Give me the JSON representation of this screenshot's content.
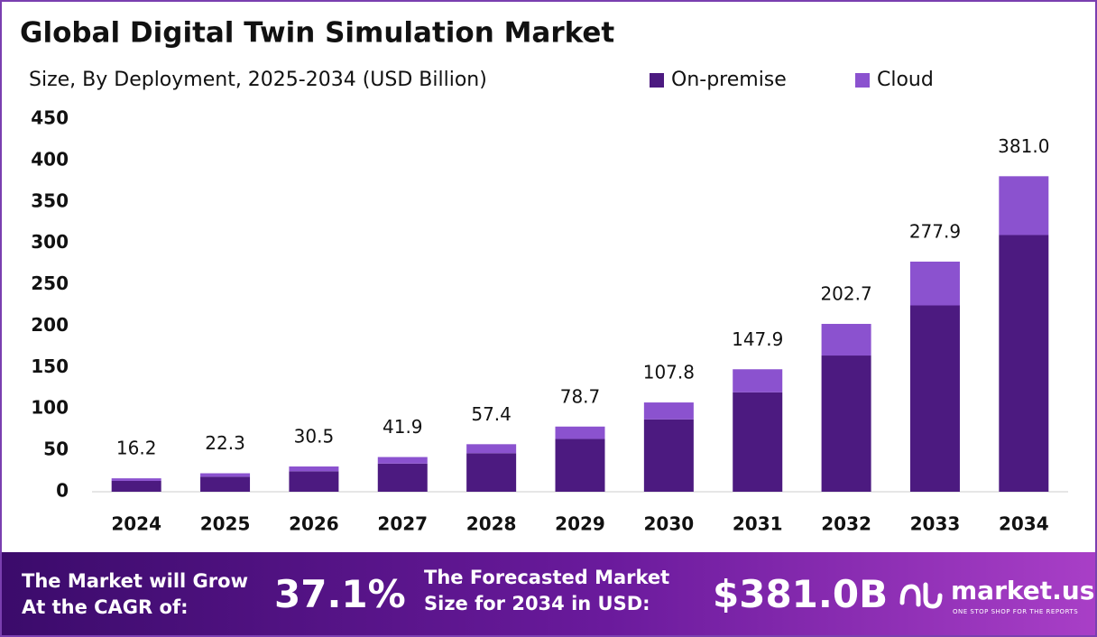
{
  "chart_data": {
    "type": "stacked-bar",
    "title": "Global Digital Twin Simulation Market",
    "subtitle": "Size, By Deployment, 2025-2034 (USD Billion)",
    "categories": [
      "2024",
      "2025",
      "2026",
      "2027",
      "2028",
      "2029",
      "2030",
      "2031",
      "2032",
      "2033",
      "2034"
    ],
    "series": [
      {
        "name": "On-premise",
        "color": "#4c1a80",
        "values": [
          13.1,
          18.1,
          24.7,
          34.0,
          46.5,
          63.8,
          87.4,
          120.0,
          164.5,
          225.0,
          310.0
        ]
      },
      {
        "name": "Cloud",
        "color": "#8b52cf",
        "values": [
          3.1,
          4.2,
          5.8,
          7.9,
          10.9,
          14.9,
          20.4,
          27.9,
          38.2,
          52.9,
          71.0
        ]
      }
    ],
    "totals": {
      "values": [
        16.2,
        22.3,
        30.5,
        41.9,
        57.4,
        78.7,
        107.8,
        147.9,
        202.7,
        277.9,
        381.0
      ],
      "value_labels": [
        "16.2",
        "22.3",
        "30.5",
        "41.9",
        "57.4",
        "78.7",
        "107.8",
        "147.9",
        "202.7",
        "277.9",
        "381.0"
      ]
    },
    "ylim": [
      0,
      450
    ],
    "yticks": [
      0,
      50,
      100,
      150,
      200,
      250,
      300,
      350,
      400,
      450
    ],
    "grid": false,
    "legend": "top-right"
  },
  "footer": {
    "cagr_label": [
      "The Market will Grow",
      "At the CAGR of:"
    ],
    "cagr": "37.1%",
    "forecast_label": [
      "The Forecasted Market",
      "Size for 2034 in USD:"
    ],
    "forecast": "$381.0B",
    "brand": "market.us",
    "tagline": "ONE STOP SHOP FOR THE REPORTS"
  }
}
